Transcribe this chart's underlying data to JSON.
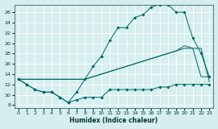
{
  "xlabel": "Humidex (Indice chaleur)",
  "xlim": [
    -0.5,
    23.5
  ],
  "ylim": [
    7.5,
    27.5
  ],
  "yticks": [
    8,
    10,
    12,
    14,
    16,
    18,
    20,
    22,
    24,
    26
  ],
  "xticks": [
    0,
    1,
    2,
    3,
    4,
    5,
    6,
    7,
    8,
    9,
    10,
    11,
    12,
    13,
    14,
    15,
    16,
    17,
    18,
    19,
    20,
    21,
    22,
    23
  ],
  "bg_color": "#d6eeee",
  "grid_color": "#b8d8d8",
  "line_color": "#006666",
  "line1_y": [
    13,
    12,
    11,
    10.5,
    10.5,
    9.5,
    8.5,
    9,
    9.5,
    9.5,
    9.5,
    11,
    11,
    11,
    11,
    11,
    11,
    11.5,
    11.5,
    12,
    12,
    12,
    12,
    12
  ],
  "line2_y": [
    13,
    12,
    11,
    10.5,
    10.5,
    9.5,
    8.5,
    10.5,
    13,
    15.5,
    17.5,
    20.5,
    23,
    23,
    25,
    25.5,
    27,
    27.5,
    27.5,
    26,
    26,
    21,
    18,
    13.5
  ],
  "line3_y": [
    13,
    13,
    13,
    13,
    13,
    13,
    13,
    13,
    13,
    13.5,
    14,
    14.5,
    15,
    15.5,
    16,
    16.5,
    17,
    17.5,
    18,
    18.5,
    19,
    19,
    19,
    12.5
  ],
  "line4_y": [
    13,
    13,
    13,
    13,
    13,
    13,
    13,
    13,
    13,
    13.5,
    14,
    14.5,
    15,
    15.5,
    16,
    16.5,
    17,
    17.5,
    18,
    18.5,
    19.5,
    19,
    13.5,
    13.5
  ]
}
